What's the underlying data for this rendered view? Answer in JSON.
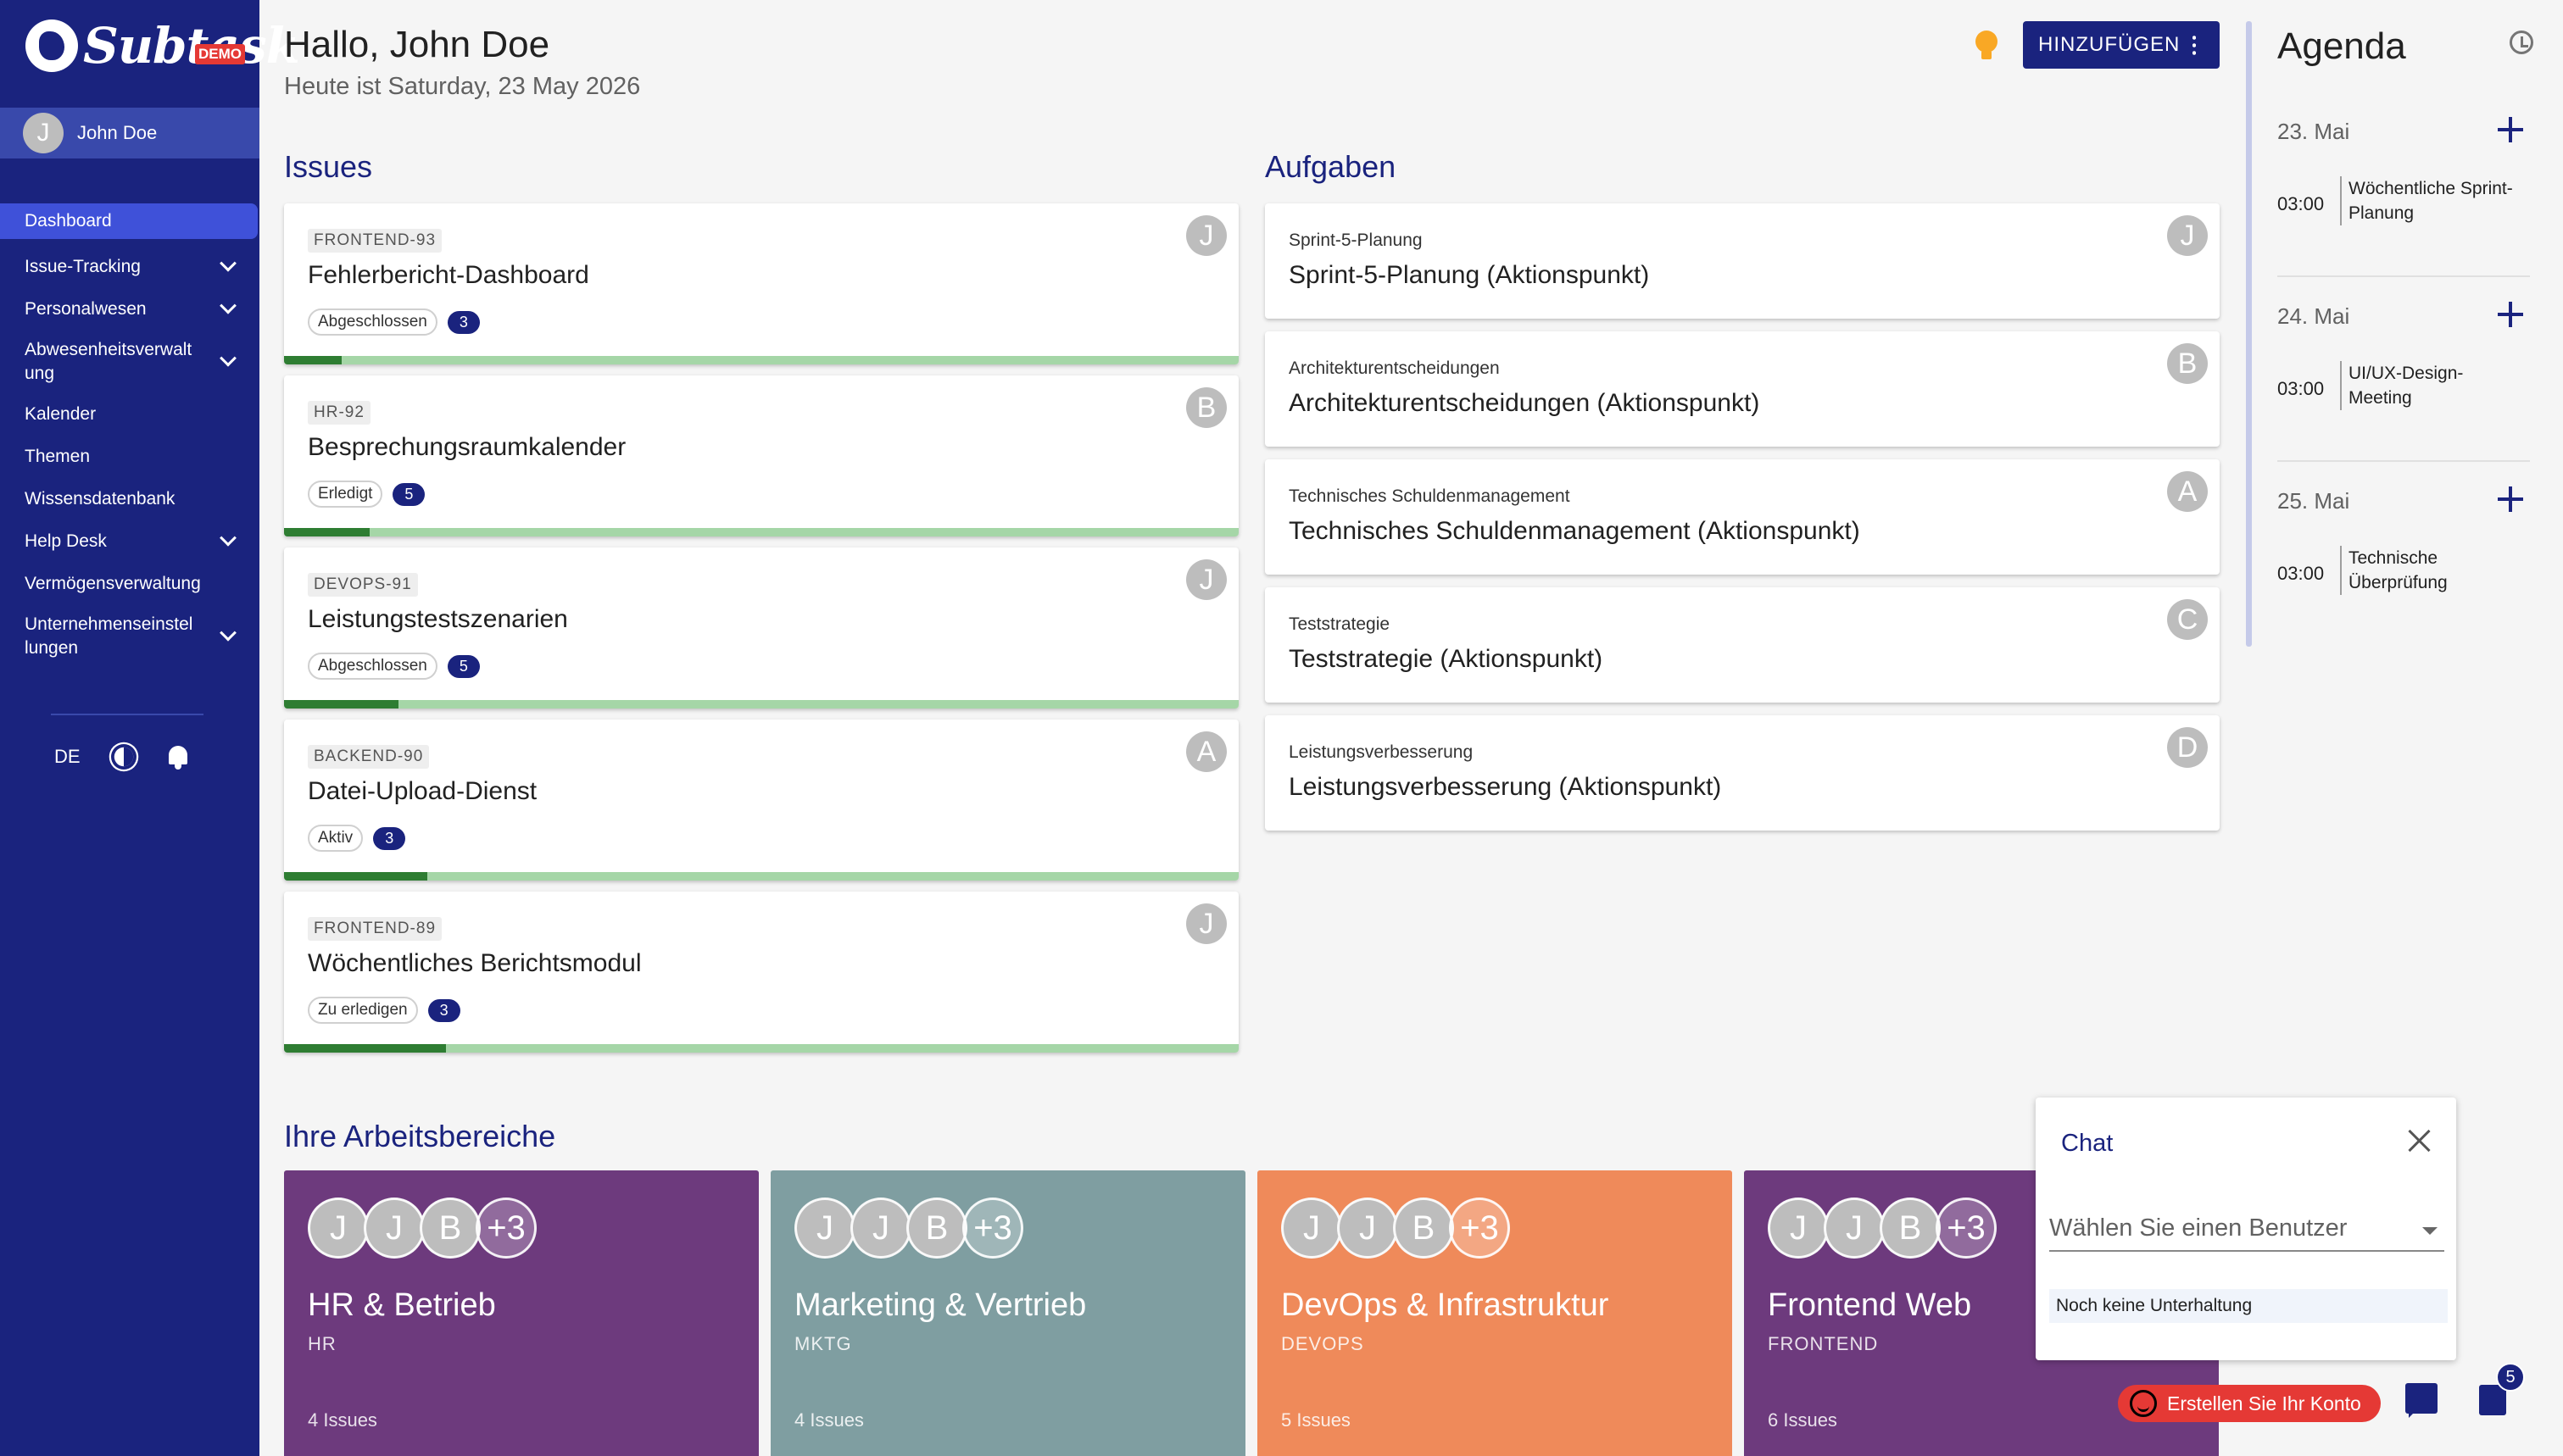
{
  "app": {
    "brand": "Subtask",
    "badge": "DEMO"
  },
  "user": {
    "initial": "J",
    "name": "John Doe"
  },
  "nav": {
    "items": [
      {
        "label": "Dashboard",
        "active": true,
        "expandable": false
      },
      {
        "label": "Issue-Tracking",
        "expandable": true
      },
      {
        "label": "Personalwesen",
        "expandable": true
      },
      {
        "label": "Abwesenheitsverwalt\nung",
        "expandable": true
      },
      {
        "label": "Kalender",
        "expandable": false
      },
      {
        "label": "Themen",
        "expandable": false
      },
      {
        "label": "Wissensdatenbank",
        "expandable": false
      },
      {
        "label": "Help Desk",
        "expandable": true
      },
      {
        "label": "Vermögensverwaltung",
        "expandable": false
      },
      {
        "label": "Unternehmenseinstel\nlungen",
        "expandable": true
      }
    ],
    "language": "DE"
  },
  "header": {
    "greeting": "Hallo, John Doe",
    "today": "Heute ist Saturday, 23 May 2026",
    "add_button": "HINZUFÜGEN"
  },
  "issues": {
    "title": "Issues",
    "items": [
      {
        "key": "FRONTEND-93",
        "title": "Fehlerbericht-Dashboard",
        "status": "Abgeschlossen",
        "count": "3",
        "avatar": "J",
        "progress": 0.06
      },
      {
        "key": "HR-92",
        "title": "Besprechungsraumkalender",
        "status": "Erledigt",
        "count": "5",
        "avatar": "B",
        "progress": 0.09
      },
      {
        "key": "DEVOPS-91",
        "title": "Leistungstestszenarien",
        "status": "Abgeschlossen",
        "count": "5",
        "avatar": "J",
        "progress": 0.12
      },
      {
        "key": "BACKEND-90",
        "title": "Datei-Upload-Dienst",
        "status": "Aktiv",
        "count": "3",
        "avatar": "A",
        "progress": 0.15
      },
      {
        "key": "FRONTEND-89",
        "title": "Wöchentliches Berichtsmodul",
        "status": "Zu erledigen",
        "count": "3",
        "avatar": "J",
        "progress": 0.17
      }
    ]
  },
  "tasks": {
    "title": "Aufgaben",
    "items": [
      {
        "sub": "Sprint-5-Planung",
        "title": "Sprint-5-Planung (Aktionspunkt)",
        "avatar": "J"
      },
      {
        "sub": "Architekturentscheidungen",
        "title": "Architekturentscheidungen (Aktionspunkt)",
        "avatar": "B"
      },
      {
        "sub": "Technisches Schuldenmanagement",
        "title": "Technisches Schuldenmanagement (Aktionspunkt)",
        "avatar": "A"
      },
      {
        "sub": "Teststrategie",
        "title": "Teststrategie (Aktionspunkt)",
        "avatar": "C"
      },
      {
        "sub": "Leistungsverbesserung",
        "title": "Leistungsverbesserung (Aktionspunkt)",
        "avatar": "D"
      }
    ]
  },
  "agenda": {
    "title": "Agenda",
    "days": [
      {
        "date": "23. Mai",
        "time": "03:00",
        "event": "Wöchentliche Sprint-Planung"
      },
      {
        "date": "24. Mai",
        "time": "03:00",
        "event": "UI/UX-Design-Meeting"
      },
      {
        "date": "25. Mai",
        "time": "03:00",
        "event": "Technische Überprüfung"
      }
    ]
  },
  "workspaces": {
    "title": "Ihre Arbeitsbereiche",
    "items": [
      {
        "name": "HR & Betrieb",
        "code": "HR",
        "count": "4 Issues",
        "color": "#6d3a7d",
        "avatars": [
          "J",
          "J",
          "B",
          "+3"
        ]
      },
      {
        "name": "Marketing & Vertrieb",
        "code": "MKTG",
        "count": "4 Issues",
        "color": "#7f9ea1",
        "avatars": [
          "J",
          "J",
          "B",
          "+3"
        ]
      },
      {
        "name": "DevOps & Infrastruktur",
        "code": "DEVOPS",
        "count": "5 Issues",
        "color": "#ef8a5a",
        "avatars": [
          "J",
          "J",
          "B",
          "+3"
        ]
      },
      {
        "name": "Frontend Web",
        "code": "FRONTEND",
        "count": "6 Issues",
        "color": "#6d3a7d",
        "avatars": [
          "J",
          "J",
          "B",
          "+3"
        ]
      }
    ]
  },
  "chat": {
    "title": "Chat",
    "select_label": "Wählen Sie einen Benutzer",
    "empty": "Noch keine Unterhaltung"
  },
  "footer": {
    "signup": "Erstellen Sie Ihr Konto",
    "tasks_badge": "5"
  },
  "colors": {
    "primary": "#1a237e",
    "accent": "#e53935",
    "progress": "#2e7d32"
  }
}
